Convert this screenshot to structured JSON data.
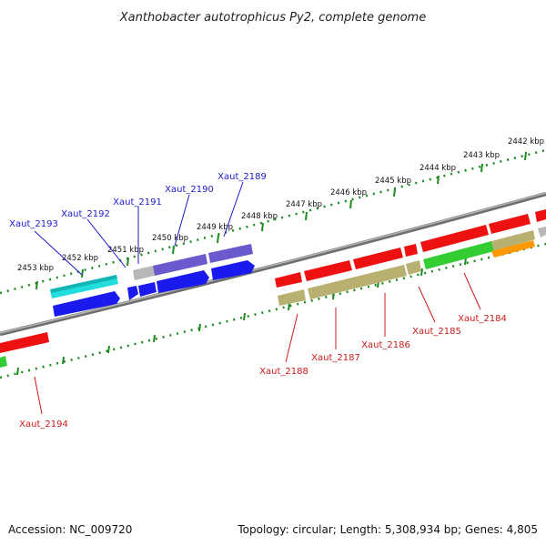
{
  "title": "Xanthobacter autotrophicus Py2, complete genome",
  "footer": {
    "accession": "Accession: NC_009720",
    "summary": "Topology: circular; Length: 5,308,934 bp; Genes: 4,805"
  },
  "colors": {
    "ruler": "#1f8a1f",
    "backbone": "#7a7a7a",
    "label_top": "#1a1acc",
    "label_bottom": "#cc1a1a",
    "red": "#ee1111",
    "blue": "#1a1aee",
    "cyan": "#22dddd",
    "lavender": "#6a5acd",
    "gray": "#b8b8b8",
    "olive": "#b8b070",
    "green": "#33cc33",
    "orange": "#ff9900"
  },
  "ruler_ticks": [
    "2442 kbp",
    "2443 kbp",
    "2444 kbp",
    "2445 kbp",
    "2446 kbp",
    "2447 kbp",
    "2448 kbp",
    "2449 kbp",
    "2450 kbp",
    "2451 kbp",
    "2452 kbp",
    "2453 kbp"
  ],
  "labels_top": [
    "Xaut_2189",
    "Xaut_2190",
    "Xaut_2191",
    "Xaut_2192",
    "Xaut_2193"
  ],
  "labels_bottom": [
    "Xaut_2184",
    "Xaut_2185",
    "Xaut_2186",
    "Xaut_2187",
    "Xaut_2188",
    "Xaut_2194"
  ]
}
